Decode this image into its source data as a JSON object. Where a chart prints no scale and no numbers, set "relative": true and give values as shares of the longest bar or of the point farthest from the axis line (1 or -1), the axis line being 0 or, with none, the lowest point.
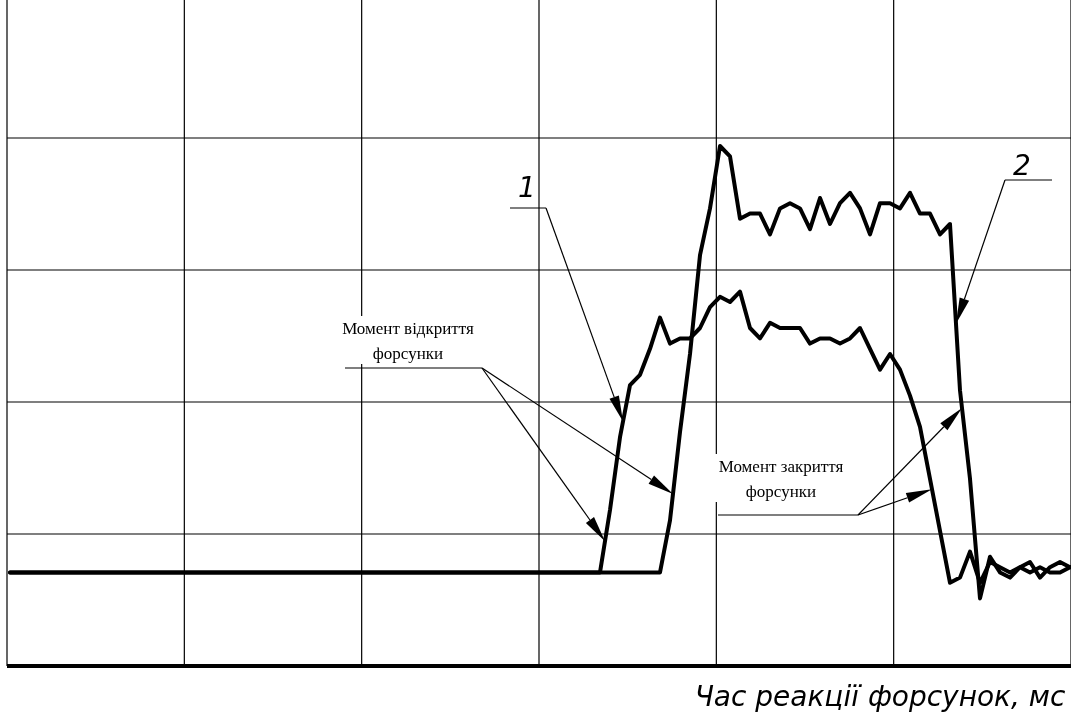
{
  "chart_data": {
    "type": "line",
    "relative": true,
    "grid": true,
    "xlabel": "Час реакції форсунок, мс",
    "categories": [
      null,
      null,
      null,
      null,
      null,
      null,
      null,
      null,
      null,
      null,
      null,
      null,
      null,
      null,
      null,
      null,
      null,
      null,
      null,
      null,
      null,
      null,
      null,
      null,
      null,
      null,
      null,
      null,
      null,
      null,
      null,
      null,
      null,
      null,
      null,
      null,
      null,
      null,
      null,
      null,
      null,
      null,
      null,
      null,
      null,
      null,
      null,
      null,
      null,
      null,
      null,
      null,
      null,
      null,
      null,
      null,
      null,
      null,
      null,
      null,
      null,
      null,
      null,
      null,
      null,
      null,
      null,
      null,
      null,
      null,
      null,
      null,
      null,
      null,
      null,
      null,
      null,
      null,
      null,
      null,
      null,
      null,
      null,
      null,
      null,
      null,
      null,
      null,
      null,
      null,
      null,
      null,
      null,
      null,
      null,
      null,
      null,
      null,
      null,
      null,
      null,
      null,
      null,
      null,
      null,
      null,
      null
    ],
    "annotations": [
      "Момент відкриття форсунки",
      "Момент закриття форсунки"
    ],
    "series": [
      {
        "name": "1",
        "color": "#000000",
        "values": [
          0.18,
          0.18,
          0.18,
          0.18,
          0.18,
          0.18,
          0.18,
          0.18,
          0.18,
          0.18,
          0.18,
          0.18,
          0.18,
          0.18,
          0.18,
          0.18,
          0.18,
          0.18,
          0.18,
          0.18,
          0.18,
          0.18,
          0.18,
          0.18,
          0.18,
          0.18,
          0.18,
          0.18,
          0.18,
          0.18,
          0.18,
          0.18,
          0.18,
          0.18,
          0.18,
          0.18,
          0.18,
          0.18,
          0.18,
          0.18,
          0.18,
          0.18,
          0.18,
          0.18,
          0.18,
          0.18,
          0.18,
          0.18,
          0.18,
          0.18,
          0.18,
          0.18,
          0.18,
          0.18,
          0.18,
          0.18,
          0.18,
          0.18,
          0.18,
          0.18,
          0.3,
          0.44,
          0.54,
          0.56,
          0.61,
          0.67,
          0.62,
          0.63,
          0.63,
          0.65,
          0.69,
          0.71,
          0.7,
          0.72,
          0.65,
          0.63,
          0.66,
          0.65,
          0.65,
          0.65,
          0.62,
          0.63,
          0.63,
          0.62,
          0.63,
          0.65,
          0.61,
          0.57,
          0.6,
          0.57,
          0.52,
          0.46,
          0.36,
          0.26,
          0.16,
          0.17,
          0.22,
          0.16,
          0.2,
          0.19,
          0.18,
          0.19,
          0.18,
          0.19,
          0.18,
          0.18,
          0.19
        ]
      },
      {
        "name": "2",
        "color": "#000000",
        "values": [
          0.18,
          0.18,
          0.18,
          0.18,
          0.18,
          0.18,
          0.18,
          0.18,
          0.18,
          0.18,
          0.18,
          0.18,
          0.18,
          0.18,
          0.18,
          0.18,
          0.18,
          0.18,
          0.18,
          0.18,
          0.18,
          0.18,
          0.18,
          0.18,
          0.18,
          0.18,
          0.18,
          0.18,
          0.18,
          0.18,
          0.18,
          0.18,
          0.18,
          0.18,
          0.18,
          0.18,
          0.18,
          0.18,
          0.18,
          0.18,
          0.18,
          0.18,
          0.18,
          0.18,
          0.18,
          0.18,
          0.18,
          0.18,
          0.18,
          0.18,
          0.18,
          0.18,
          0.18,
          0.18,
          0.18,
          0.18,
          0.18,
          0.18,
          0.18,
          0.18,
          0.18,
          0.18,
          0.18,
          0.18,
          0.18,
          0.18,
          0.28,
          0.45,
          0.6,
          0.79,
          0.88,
          1.0,
          0.98,
          0.86,
          0.87,
          0.87,
          0.83,
          0.88,
          0.89,
          0.88,
          0.84,
          0.9,
          0.85,
          0.89,
          0.91,
          0.88,
          0.83,
          0.89,
          0.89,
          0.88,
          0.91,
          0.87,
          0.87,
          0.83,
          0.85,
          0.53,
          0.36,
          0.13,
          0.21,
          0.18,
          0.17,
          0.19,
          0.2,
          0.17,
          0.19,
          0.2,
          0.19
        ]
      }
    ]
  }
}
